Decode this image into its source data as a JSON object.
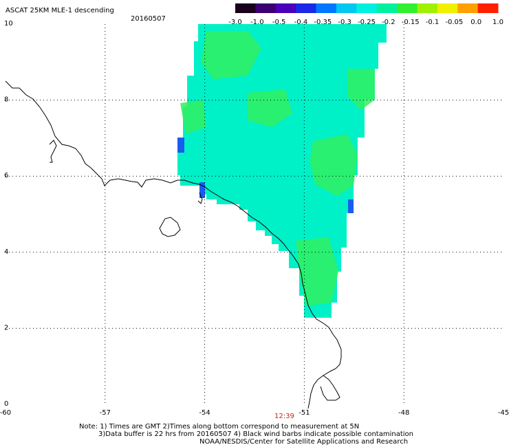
{
  "title": "ASCAT 25KM MLE-1 descending",
  "date": "20160507",
  "colorbar": {
    "tick_labels": [
      "-3.0",
      "-1.0",
      "-0.5",
      "-0.4",
      "-0.35",
      "-0.3",
      "-0.25",
      "-0.2",
      "-0.15",
      "-0.1",
      "-0.05",
      "0.0",
      "1.0"
    ],
    "colors": [
      "#1a001a",
      "#3c0070",
      "#4a00b8",
      "#1a28e8",
      "#0078ff",
      "#00c8f0",
      "#00f0e0",
      "#00f0a0",
      "#30f030",
      "#a0f000",
      "#f0f000",
      "#ffa000",
      "#ff2000"
    ]
  },
  "axes": {
    "lon_labels": [
      "-60",
      "-57",
      "-54",
      "-51",
      "-48",
      "-45"
    ],
    "lat_labels": [
      "0",
      "2",
      "4",
      "6",
      "8",
      "10"
    ]
  },
  "time_label": "12:39",
  "notes": {
    "line1": "Note: 1) Times are GMT 2)Times along bottom correspond to measurement at 5N",
    "line2": "3)Data buffer is 22 hrs from 20160507 4) Black wind barbs indicate possible contamination",
    "line3": "NOAA/NESDIS/Center for Satellite Applications and Research"
  },
  "colors": {
    "swath_main": "#00f0c8",
    "swath_green": "#30f060",
    "swath_blue": "#1a5cf0",
    "grid": "#000000",
    "time": "#c81e1e"
  }
}
